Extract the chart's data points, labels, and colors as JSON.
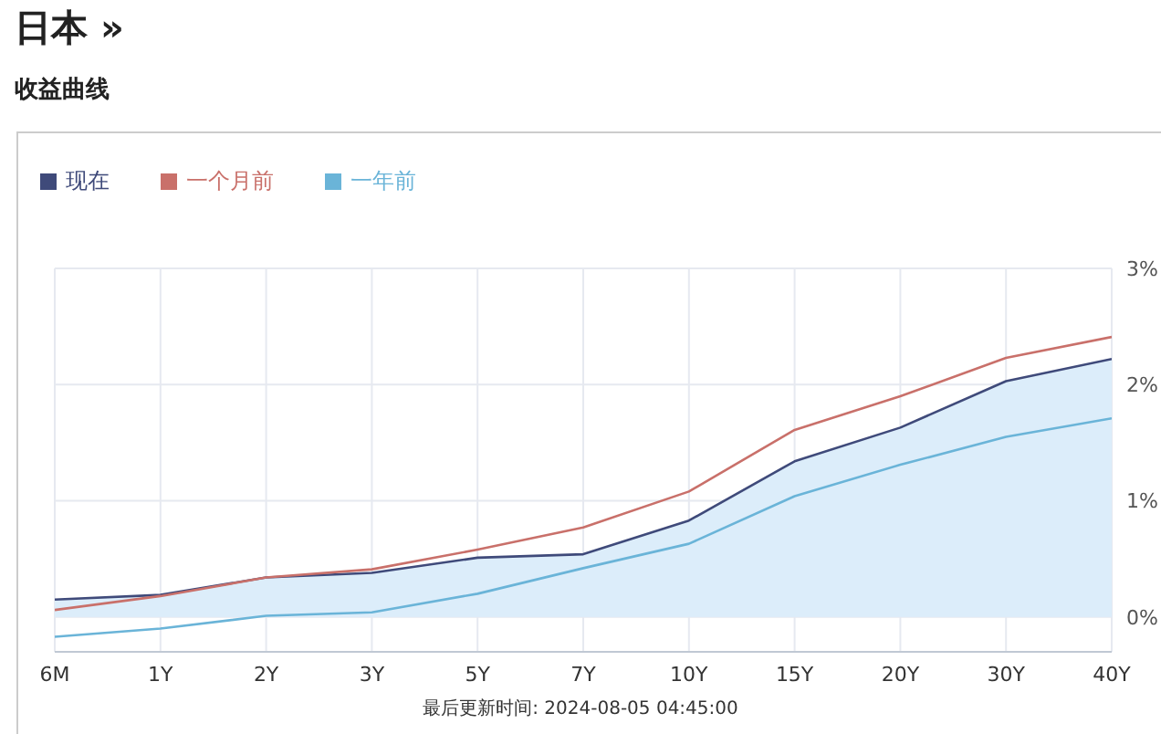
{
  "chart_data": {
    "type": "line",
    "title": "日本 »",
    "subtitle": "收益曲线",
    "categories": [
      "6M",
      "1Y",
      "2Y",
      "3Y",
      "5Y",
      "7Y",
      "10Y",
      "15Y",
      "20Y",
      "30Y",
      "40Y"
    ],
    "series": [
      {
        "name": "现在",
        "type": "area",
        "color": "#3f4a7a",
        "values": [
          0.15,
          0.19,
          0.34,
          0.38,
          0.51,
          0.54,
          0.83,
          1.34,
          1.63,
          2.03,
          2.22
        ]
      },
      {
        "name": "一个月前",
        "color": "#c9706a",
        "values": [
          0.06,
          0.18,
          0.34,
          0.41,
          0.58,
          0.77,
          1.08,
          1.61,
          1.9,
          2.23,
          2.41
        ]
      },
      {
        "name": "一年前",
        "color": "#6ab4d8",
        "values": [
          -0.17,
          -0.1,
          0.01,
          0.04,
          0.2,
          0.42,
          0.63,
          1.04,
          1.31,
          1.55,
          1.71
        ]
      }
    ],
    "ylim": [
      -0.3,
      3
    ],
    "yticks": [
      {
        "value": 0,
        "label": "0%"
      },
      {
        "value": 1,
        "label": "1%"
      },
      {
        "value": 2,
        "label": "2%"
      },
      {
        "value": 3,
        "label": "3%"
      }
    ],
    "grid": true,
    "legend": "top left",
    "marker": "none",
    "line_style": "solid",
    "annotations": [
      "最后更新时间: 2024-08-05 04:45:00"
    ]
  }
}
